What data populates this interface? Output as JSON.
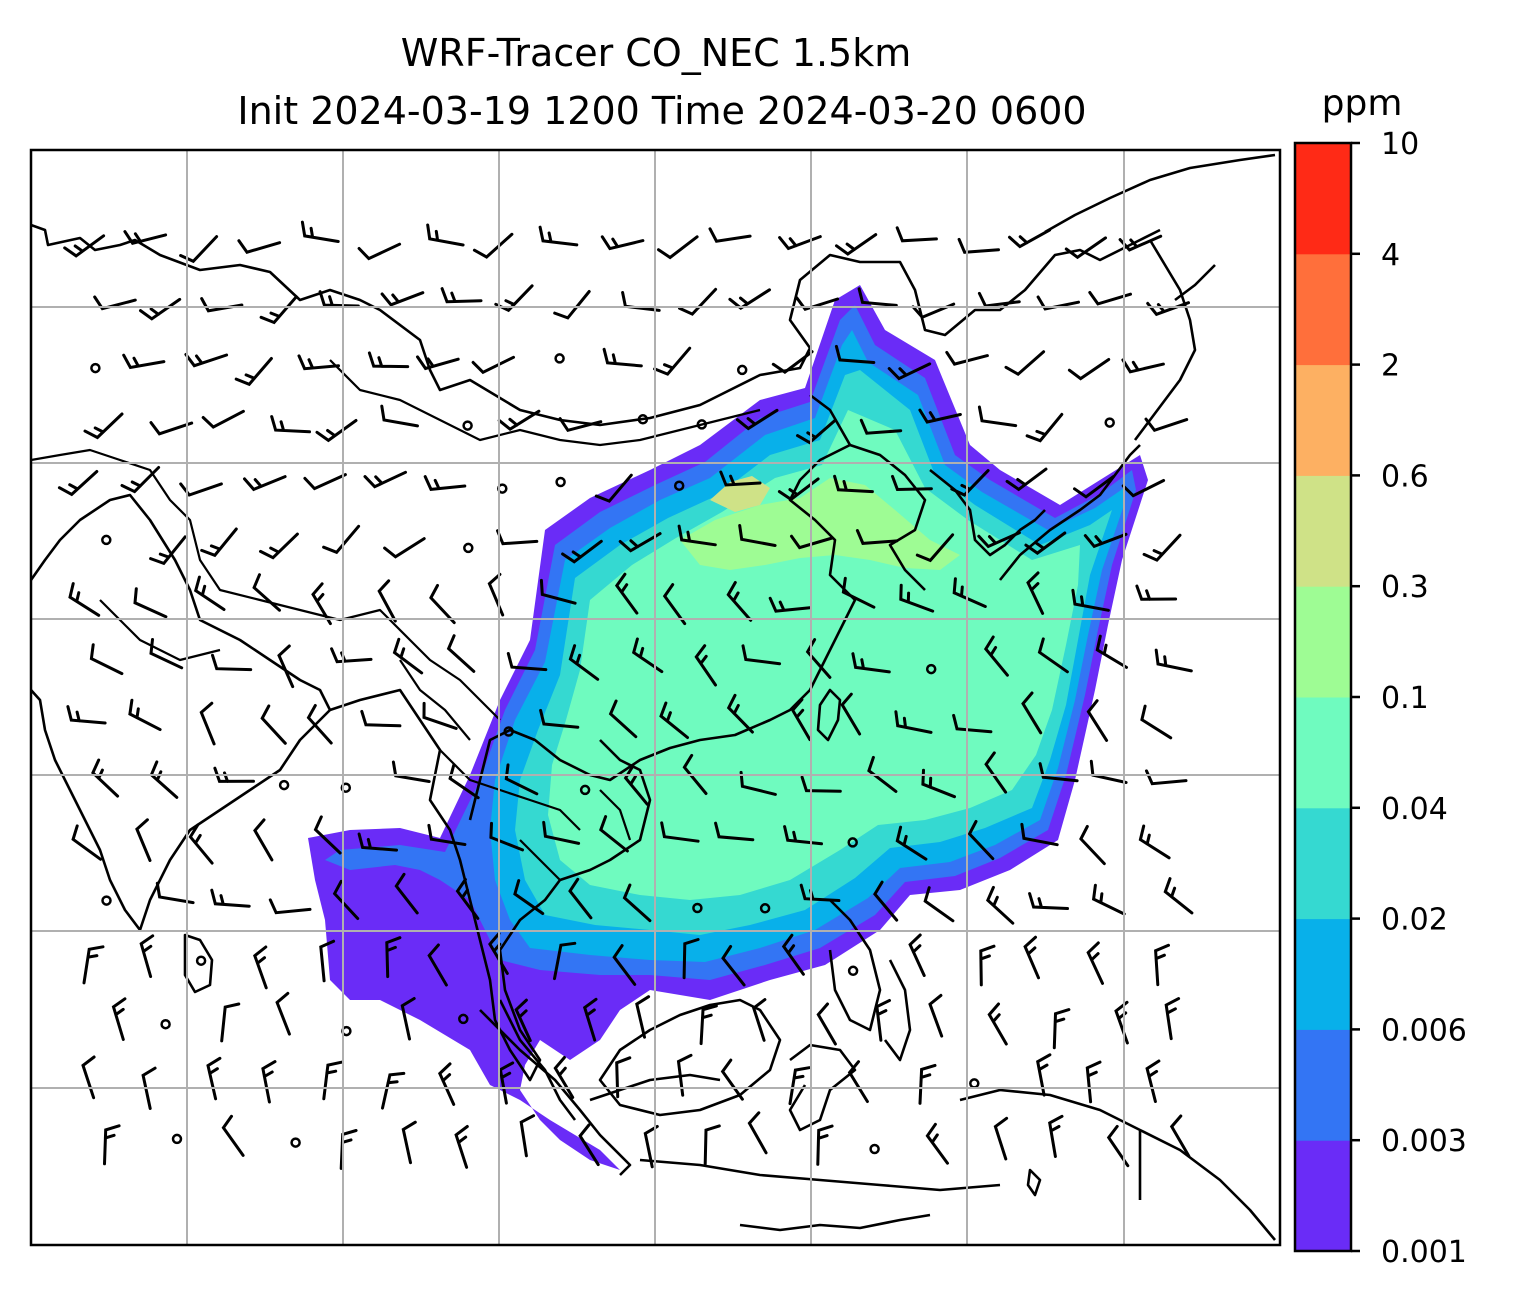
{
  "title": {
    "line1": "WRF-Tracer CO_NEC 1.5km",
    "line2": "Init 2024-03-19 1200 Time 2024-03-20 0600"
  },
  "colorbar": {
    "unit": "ppm",
    "levels": [
      "0.001",
      "0.003",
      "0.006",
      "0.02",
      "0.04",
      "0.1",
      "0.3",
      "0.6",
      "2",
      "4",
      "10"
    ],
    "colors": [
      "#6a2cf7",
      "#3375f4",
      "#08b0ea",
      "#35d9d1",
      "#6ffbbf",
      "#9efc94",
      "#cfe287",
      "#fdb062",
      "#ff6f3b",
      "#ff2a16"
    ]
  },
  "map": {
    "land_outline_color": "#000000",
    "gridline_color": "#b0b0b0",
    "wind_barb_color": "#000000"
  }
}
